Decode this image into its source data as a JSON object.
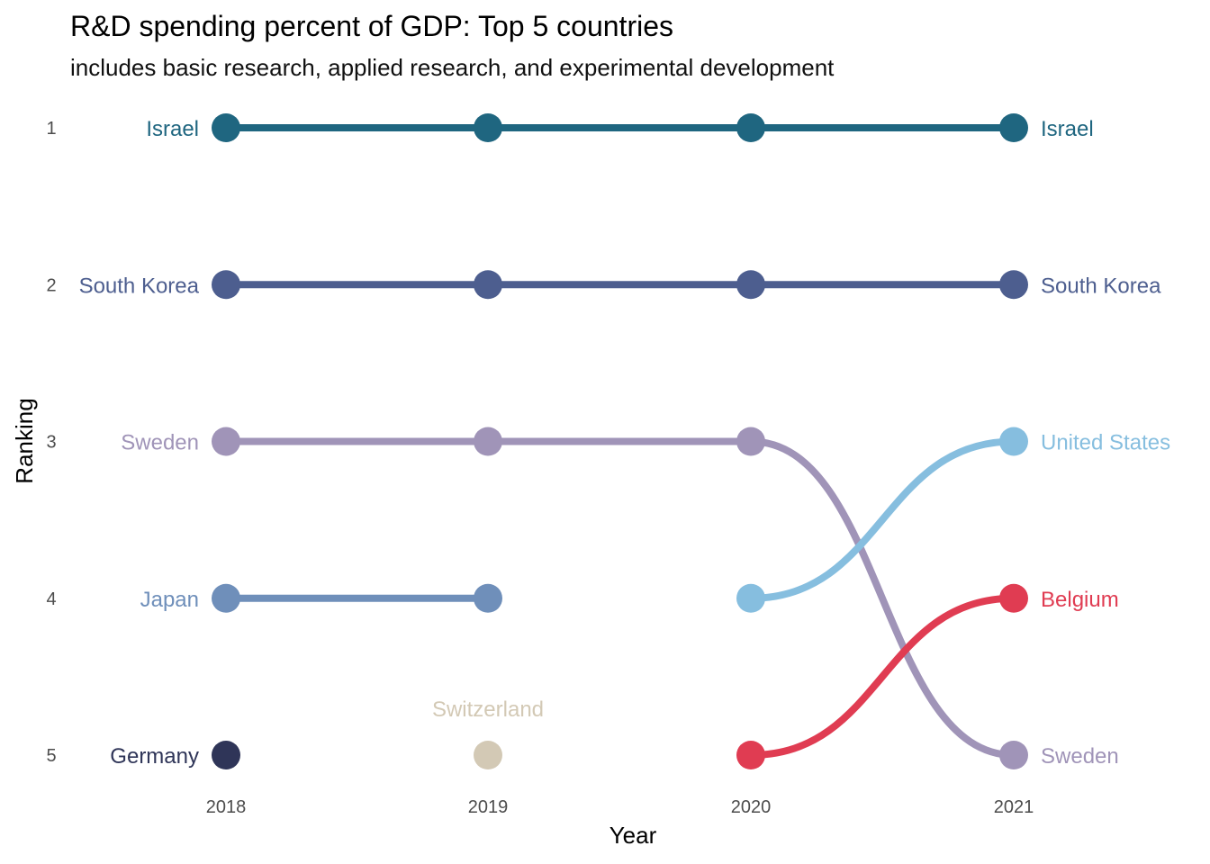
{
  "chart_data": {
    "type": "line",
    "subtype": "bump",
    "title": "R&D spending percent of GDP: Top 5 countries",
    "subtitle": "includes basic research, applied research, and experimental development",
    "xlabel": "Year",
    "ylabel": "Ranking",
    "x": [
      "2018",
      "2019",
      "2020",
      "2021"
    ],
    "y_ticks": [
      "1",
      "2",
      "3",
      "4",
      "5"
    ],
    "y_reversed": true,
    "grid": false,
    "series": [
      {
        "name": "Israel",
        "color": "#1f6680",
        "ranks": [
          1,
          1,
          1,
          1
        ]
      },
      {
        "name": "South Korea",
        "color": "#4d5e8f",
        "ranks": [
          2,
          2,
          2,
          2
        ]
      },
      {
        "name": "Sweden",
        "color": "#a094b8",
        "ranks": [
          3,
          3,
          3,
          5
        ]
      },
      {
        "name": "Japan",
        "color": "#6f8fba",
        "ranks": [
          4,
          4,
          null,
          null
        ]
      },
      {
        "name": "Germany",
        "color": "#2f3558",
        "ranks": [
          5,
          null,
          null,
          null
        ]
      },
      {
        "name": "Switzerland",
        "color": "#d3c9b5",
        "ranks": [
          null,
          5,
          null,
          null
        ]
      },
      {
        "name": "United States",
        "color": "#86bedf",
        "ranks": [
          null,
          null,
          4,
          3
        ]
      },
      {
        "name": "Belgium",
        "color": "#e03c52",
        "ranks": [
          null,
          null,
          5,
          4
        ]
      }
    ]
  }
}
